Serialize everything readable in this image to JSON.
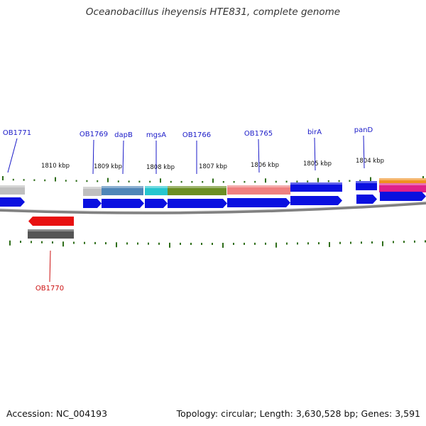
{
  "title": "Oceanobacillus iheyensis HTE831, complete genome",
  "footer": {
    "accession": "Accession: NC_004193",
    "topology": "Topology: circular; Length: 3,630,528 bp; Genes: 3,591"
  },
  "scale_labels": [
    "1810 kbp",
    "1809 kbp",
    "1808 kbp",
    "1807 kbp",
    "1806 kbp",
    "1805 kbp",
    "1804 kbp"
  ],
  "gene_labels_top": [
    "OB1771",
    "OB1769",
    "dapB",
    "mgsA",
    "OB1766",
    "OB1765",
    "birA",
    "panD"
  ],
  "gene_labels_bottom": [
    "OB1770"
  ],
  "colors": {
    "label_blue": "#1a1ac8",
    "label_red": "#cc1010",
    "tick_green": "#2f6e1a",
    "cds_blue": "#0a10e0",
    "reverse_red": "#e81010",
    "reverse_gray": "#555555",
    "backbone": "#808080",
    "class_gray": "#bfbfbf",
    "class_steel": "#4f86b8",
    "class_cyan": "#26c6cf",
    "class_olive": "#6b8e23",
    "class_salmon": "#ef8080",
    "class_orange": "#f09020",
    "class_magenta": "#e0208a"
  }
}
